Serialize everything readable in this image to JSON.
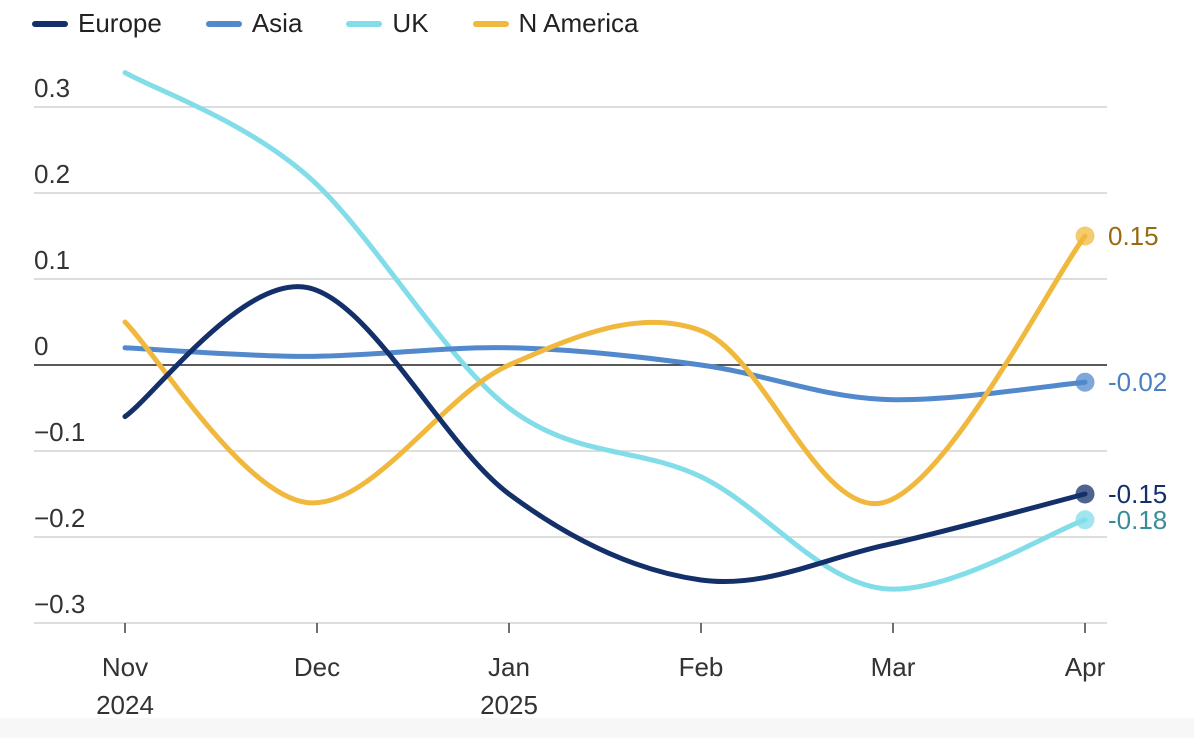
{
  "chart_data": {
    "type": "line",
    "title": "",
    "xlabel": "",
    "ylabel": "",
    "ylim": [
      -0.3,
      0.3
    ],
    "yticks": [
      0.3,
      0.2,
      0.1,
      0,
      -0.1,
      -0.2,
      -0.3
    ],
    "ytick_labels": [
      "0.3",
      "0.2",
      "0.1",
      "0",
      "−0.1",
      "−0.2",
      "−0.3"
    ],
    "categories": [
      "Nov",
      "Dec",
      "Jan",
      "Feb",
      "Mar",
      "Apr"
    ],
    "category_years": [
      "2024",
      "",
      "2025",
      "",
      "",
      ""
    ],
    "series": [
      {
        "name": "Europe",
        "color": "#14306a",
        "end_label": "-0.15",
        "end_label_color": "#14306a",
        "points": [
          [
            0,
            -0.06
          ],
          [
            0.95,
            0.09
          ],
          [
            2,
            -0.15
          ],
          [
            3,
            -0.25
          ],
          [
            3.95,
            -0.21
          ],
          [
            5,
            -0.15
          ]
        ]
      },
      {
        "name": "Asia",
        "color": "#5288cc",
        "end_label": "-0.02",
        "end_label_color": "#4a7fc0",
        "points": [
          [
            0,
            0.02
          ],
          [
            0.95,
            0.01
          ],
          [
            2,
            0.02
          ],
          [
            3,
            0.0
          ],
          [
            3.95,
            -0.04
          ],
          [
            5,
            -0.02
          ]
        ]
      },
      {
        "name": "UK",
        "color": "#82dde9",
        "end_label": "-0.18",
        "end_label_color": "#3a8c99",
        "points": [
          [
            0,
            0.34
          ],
          [
            0.95,
            0.22
          ],
          [
            2,
            -0.05
          ],
          [
            3,
            -0.13
          ],
          [
            3.95,
            -0.26
          ],
          [
            5,
            -0.18
          ]
        ]
      },
      {
        "name": "N America",
        "color": "#f0b93e",
        "end_label": "0.15",
        "end_label_color": "#9a6a12",
        "points": [
          [
            0,
            0.05
          ],
          [
            0.95,
            -0.16
          ],
          [
            2,
            0.0
          ],
          [
            3,
            0.04
          ],
          [
            3.95,
            -0.16
          ],
          [
            5,
            0.15
          ]
        ]
      }
    ]
  }
}
